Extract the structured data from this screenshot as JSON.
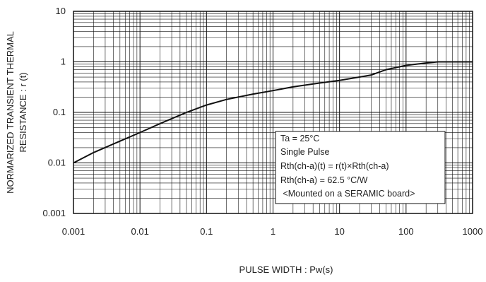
{
  "chart_data": {
    "type": "line",
    "xlabel": "PULSE WIDTH : Pw(s)",
    "ylabel_lines": [
      "NORMARIZED TRANSIENT THERMAL",
      "RESISTANCE : r (t)"
    ],
    "x_scale": "log",
    "y_scale": "log",
    "xlim": [
      0.001,
      1000
    ],
    "ylim": [
      0.001,
      10
    ],
    "x_ticks": [
      "0.001",
      "0.01",
      "0.1",
      "1",
      "10",
      "100",
      "1000"
    ],
    "y_ticks": [
      "10",
      "1",
      "0.1",
      "0.01",
      "0.001"
    ],
    "grid": true,
    "legend_position": "lower-right",
    "annotation_lines": [
      "Ta = 25°C",
      "Single Pulse",
      "Rth(ch-a)(t) = r(t)×Rth(ch-a)",
      "Rth(ch-a) = 62.5 °C/W",
      " <Mounted on a SERAMIC board>"
    ],
    "series": [
      {
        "x": [
          0.001,
          0.002,
          0.005,
          0.01,
          0.02,
          0.05,
          0.1,
          0.2,
          0.5,
          1,
          2,
          5,
          10,
          20,
          30,
          50,
          100,
          200,
          300,
          500,
          1000
        ],
        "values": [
          0.01,
          0.016,
          0.027,
          0.04,
          0.06,
          0.1,
          0.14,
          0.18,
          0.23,
          0.27,
          0.32,
          0.38,
          0.43,
          0.5,
          0.55,
          0.7,
          0.85,
          0.95,
          1.0,
          1.0,
          1.0
        ]
      }
    ],
    "line_color": "#111111"
  }
}
